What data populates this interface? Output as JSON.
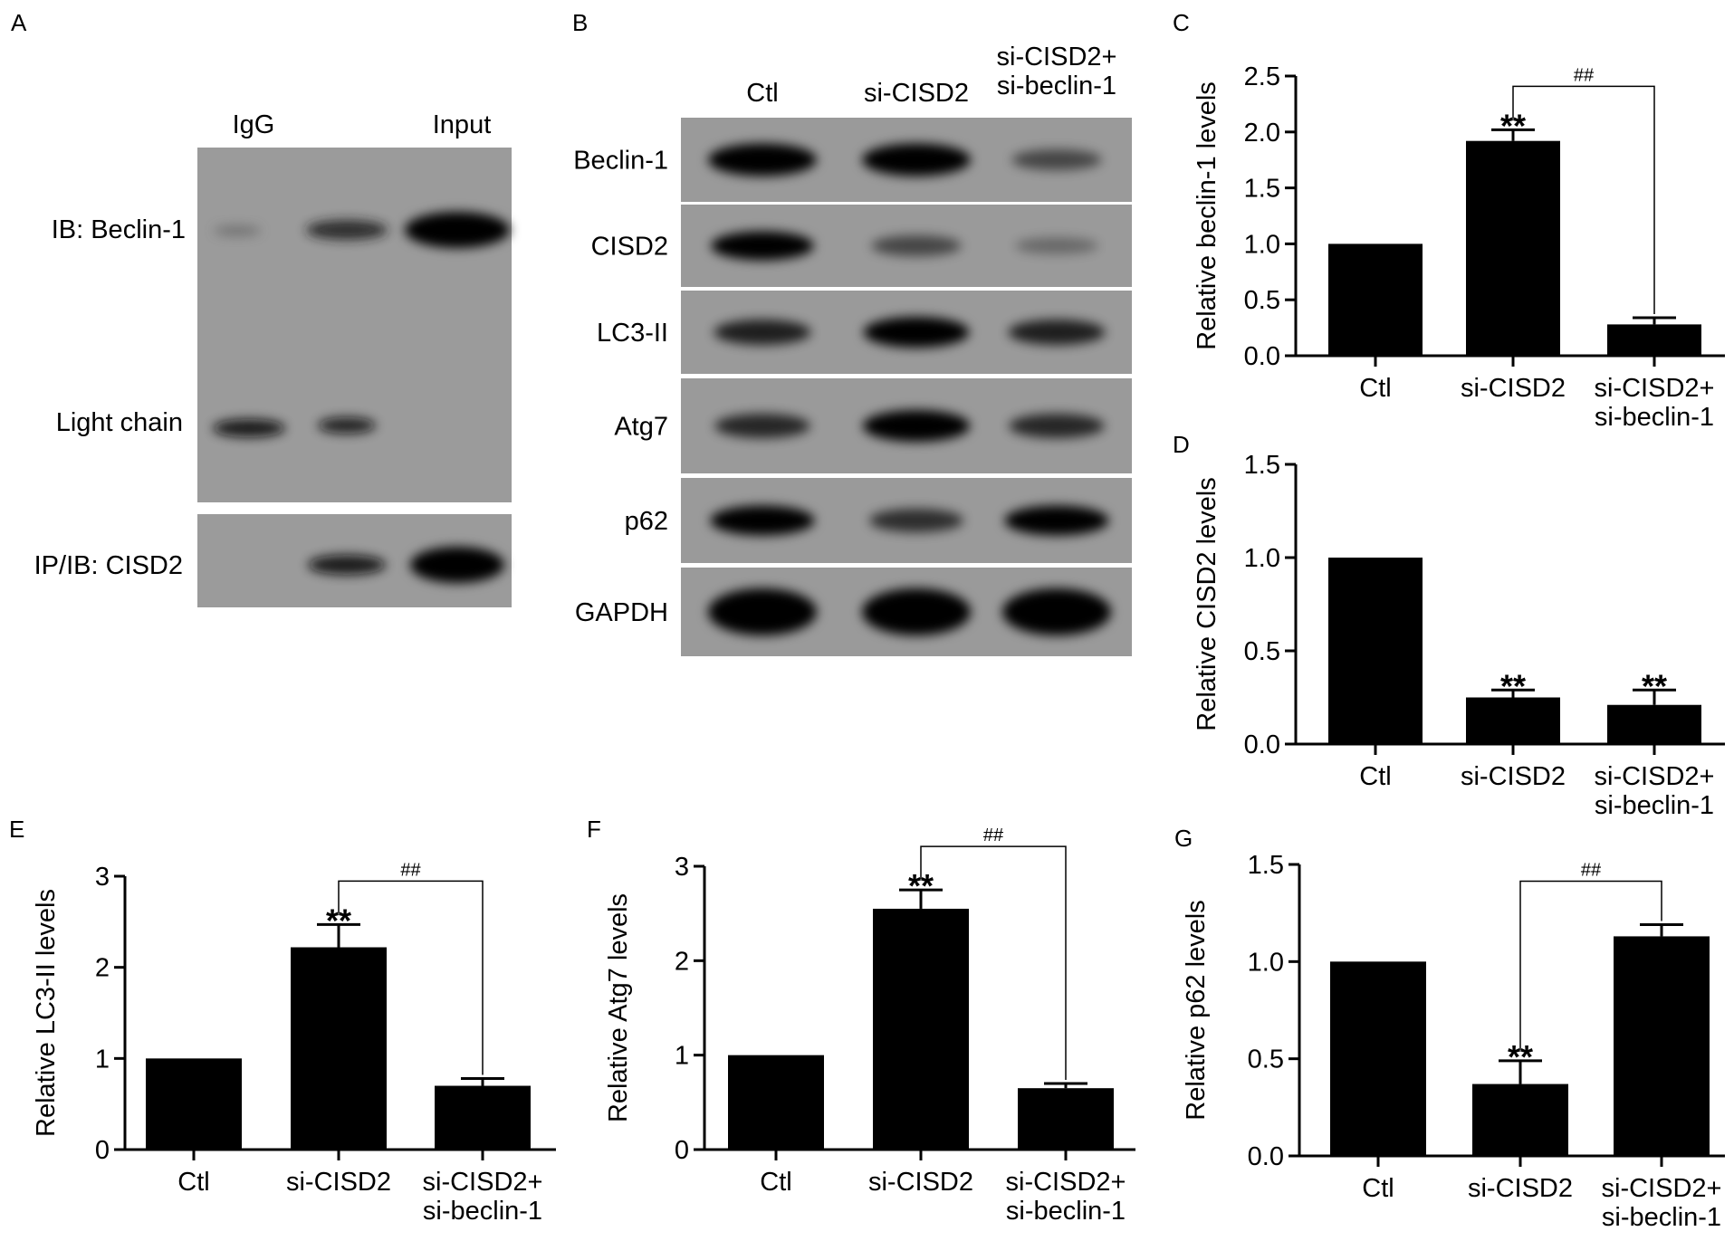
{
  "panel_letters": [
    "A",
    "B",
    "C",
    "D",
    "E",
    "F",
    "G"
  ],
  "panel_a": {
    "lanes": [
      "IgG",
      "Input"
    ],
    "rows": [
      "IB: Beclin-1",
      "Light chain",
      "IP/IB: CISD2"
    ]
  },
  "panel_b": {
    "lanes": [
      "Ctl",
      "si-CISD2",
      [
        "si-CISD2+",
        "si-beclin-1"
      ]
    ],
    "rows": [
      "Beclin-1",
      "CISD2",
      "LC3-II",
      "Atg7",
      "p62",
      "GAPDH"
    ],
    "band_intensity": [
      [
        1.0,
        1.0,
        0.35
      ],
      [
        0.8,
        0.35,
        0.12
      ],
      [
        0.6,
        0.9,
        0.6
      ],
      [
        0.55,
        0.95,
        0.55
      ],
      [
        0.85,
        0.5,
        0.85
      ],
      [
        1.0,
        1.0,
        1.0
      ]
    ]
  },
  "chart_data": [
    {
      "panel": "C",
      "type": "bar",
      "categories": [
        "Ctl",
        "si-CISD2",
        "si-CISD2+\nsi-beclin-1"
      ],
      "values": [
        1.0,
        1.92,
        0.28
      ],
      "errors": [
        0,
        0.1,
        0.06
      ],
      "ylabel": "Relative beclin-1 levels",
      "ylim": [
        0,
        2.5
      ],
      "yticks": [
        "0.0",
        "0.5",
        "1.0",
        "1.5",
        "2.0",
        "2.5"
      ],
      "annotations": [
        {
          "bar": 1,
          "text": "**"
        }
      ],
      "brackets": [
        {
          "from": 1,
          "to": 2,
          "text": "##"
        }
      ],
      "bar_color": "#000000"
    },
    {
      "panel": "D",
      "type": "bar",
      "categories": [
        "Ctl",
        "si-CISD2",
        "si-CISD2+\nsi-beclin-1"
      ],
      "values": [
        1.0,
        0.25,
        0.21
      ],
      "errors": [
        0,
        0.04,
        0.08
      ],
      "ylabel": "Relative CISD2 levels",
      "ylim": [
        0,
        1.5
      ],
      "yticks": [
        "0.0",
        "0.5",
        "1.0",
        "1.5"
      ],
      "annotations": [
        {
          "bar": 1,
          "text": "**"
        },
        {
          "bar": 2,
          "text": "**"
        }
      ],
      "brackets": [],
      "bar_color": "#000000"
    },
    {
      "panel": "E",
      "type": "bar",
      "categories": [
        "Ctl",
        "si-CISD2",
        "si-CISD2+\nsi-beclin-1"
      ],
      "values": [
        1.0,
        2.22,
        0.7
      ],
      "errors": [
        0,
        0.25,
        0.08
      ],
      "ylabel": "Relative LC3-II levels",
      "ylim": [
        0,
        3
      ],
      "yticks": [
        "0",
        "1",
        "2",
        "3"
      ],
      "annotations": [
        {
          "bar": 1,
          "text": "**"
        }
      ],
      "brackets": [
        {
          "from": 1,
          "to": 2,
          "text": "##"
        }
      ],
      "bar_color": "#000000"
    },
    {
      "panel": "F",
      "type": "bar",
      "categories": [
        "Ctl",
        "si-CISD2",
        "si-CISD2+\nsi-beclin-1"
      ],
      "values": [
        1.0,
        2.55,
        0.65
      ],
      "errors": [
        0,
        0.2,
        0.05
      ],
      "ylabel": "Relative Atg7 levels",
      "ylim": [
        0,
        3
      ],
      "yticks": [
        "0",
        "1",
        "2",
        "3"
      ],
      "annotations": [
        {
          "bar": 1,
          "text": "**"
        }
      ],
      "brackets": [
        {
          "from": 1,
          "to": 2,
          "text": "##"
        }
      ],
      "bar_color": "#000000"
    },
    {
      "panel": "G",
      "type": "bar",
      "categories": [
        "Ctl",
        "si-CISD2",
        "si-CISD2+\nsi-beclin-1"
      ],
      "values": [
        1.0,
        0.37,
        1.13
      ],
      "errors": [
        0,
        0.12,
        0.06
      ],
      "ylabel": "Relative p62 levels",
      "ylim": [
        0,
        1.5
      ],
      "yticks": [
        "0.0",
        "0.5",
        "1.0",
        "1.5"
      ],
      "annotations": [
        {
          "bar": 1,
          "text": "**"
        }
      ],
      "brackets": [
        {
          "from": 1,
          "to": 2,
          "text": "##"
        }
      ],
      "bar_color": "#000000"
    }
  ]
}
